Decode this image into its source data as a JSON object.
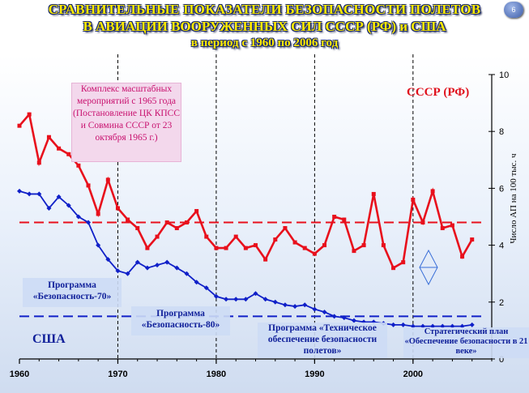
{
  "header": {
    "line1": "СРАВНИТЕЛЬНЫЕ  ПОКАЗАТЕЛИ  БЕЗОПАСНОСТИ  ПОЛЕТОВ",
    "line2": "В АВИАЦИИ ВООРУЖЕННЫХ  СИЛ СССР (РФ) и США",
    "line3": "в период с 1960 по 2006 год",
    "slide_number": "6"
  },
  "annotations": {
    "complex": "Комплекс масштабных мероприятий с 1965 года (Постановление ЦК КПСС и Совмина СССР  от 23 октября 1965  г.)",
    "prog70": "Программа «Безопасность-70»",
    "prog80": "Программа «Безопасность-80»",
    "prog_tech": "Программа  «Техническое обеспечение безопасности полетов»",
    "prog21": "Стратегический план «Обеспечение безопасности в 21 веке»",
    "ussr_label": "СССР (РФ)",
    "usa_label": "США"
  },
  "colors": {
    "ussr": "#e8101c",
    "usa": "#1020c8",
    "annotation_blue": "#10209a",
    "annotation_pink_text": "#c8106e"
  },
  "chart_data": {
    "type": "line",
    "title": "СРАВНИТЕЛЬНЫЕ  ПОКАЗАТЕЛИ  БЕЗОПАСНОСТИ  ПОЛЕТОВ В АВИАЦИИ ВООРУЖЕННЫХ  СИЛ СССР (РФ) и США в период с 1960 по 2006 год",
    "xlabel": "",
    "ylabel": "Число  АП на 100 тыс. ч",
    "xlim": [
      1960,
      2008
    ],
    "ylim": [
      0,
      10
    ],
    "x_ticks": [
      "1960",
      "1970",
      "1980",
      "1990",
      "2000"
    ],
    "y_ticks": [
      "0",
      "2",
      "4",
      "6",
      "8",
      "10"
    ],
    "y_axis_side": "right",
    "grid": false,
    "vertical_markers": [
      1970,
      1980,
      1990,
      2000
    ],
    "x": [
      1960,
      1961,
      1962,
      1963,
      1964,
      1965,
      1966,
      1967,
      1968,
      1969,
      1970,
      1971,
      1972,
      1973,
      1974,
      1975,
      1976,
      1977,
      1978,
      1979,
      1980,
      1981,
      1982,
      1983,
      1984,
      1985,
      1986,
      1987,
      1988,
      1989,
      1990,
      1991,
      1992,
      1993,
      1994,
      1995,
      1996,
      1997,
      1998,
      1999,
      2000,
      2001,
      2002,
      2003,
      2004,
      2005,
      2006
    ],
    "series": [
      {
        "name": "СССР (РФ)",
        "color": "#e8101c",
        "values": [
          8.2,
          8.6,
          6.9,
          7.8,
          7.4,
          7.2,
          6.8,
          6.1,
          5.1,
          6.3,
          5.3,
          4.9,
          4.6,
          3.9,
          4.3,
          4.8,
          4.6,
          4.8,
          5.2,
          4.3,
          3.9,
          3.9,
          4.3,
          3.9,
          4.0,
          3.5,
          4.2,
          4.6,
          4.1,
          3.9,
          3.7,
          4.0,
          5.0,
          4.9,
          3.8,
          4.0,
          5.8,
          4.0,
          3.2,
          3.4,
          5.6,
          4.8,
          5.9,
          4.6,
          4.7,
          3.6,
          4.2
        ],
        "average": 4.8
      },
      {
        "name": "США",
        "color": "#1020c8",
        "values": [
          5.9,
          5.8,
          5.8,
          5.3,
          5.7,
          5.4,
          5.0,
          4.8,
          4.0,
          3.5,
          3.1,
          3.0,
          3.4,
          3.2,
          3.3,
          3.4,
          3.2,
          3.0,
          2.7,
          2.5,
          2.2,
          2.1,
          2.1,
          2.1,
          2.3,
          2.1,
          2.0,
          1.9,
          1.85,
          1.9,
          1.75,
          1.65,
          1.5,
          1.45,
          1.35,
          1.3,
          1.3,
          1.25,
          1.2,
          1.2,
          1.15,
          1.15,
          1.15,
          1.15,
          1.15,
          1.15,
          1.2
        ],
        "average": 1.5
      }
    ]
  }
}
